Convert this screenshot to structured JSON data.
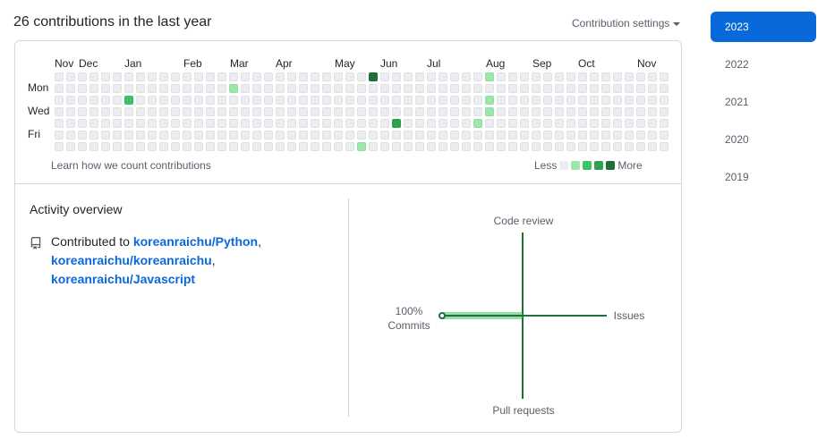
{
  "header": {
    "title": "26 contributions in the last year",
    "settings_label": "Contribution settings"
  },
  "graph": {
    "months": [
      "Nov",
      "Dec",
      "Jan",
      "Feb",
      "Mar",
      "Apr",
      "May",
      "Jun",
      "Jul",
      "Aug",
      "Sep",
      "Oct",
      "Nov"
    ],
    "days": [
      "Mon",
      "Wed",
      "Fri"
    ],
    "learn_link": "Learn how we count contributions",
    "legend_less": "Less",
    "legend_more": "More",
    "level_colors": [
      "#ebedf0",
      "#9be9a8",
      "#40c463",
      "#30a14e",
      "#216e39"
    ],
    "weeks": 53,
    "active_cells": [
      {
        "week": 6,
        "day": 2,
        "level": 2
      },
      {
        "week": 15,
        "day": 1,
        "level": 1
      },
      {
        "week": 26,
        "day": 6,
        "level": 1
      },
      {
        "week": 27,
        "day": 0,
        "level": 4
      },
      {
        "week": 29,
        "day": 4,
        "level": 3
      },
      {
        "week": 36,
        "day": 4,
        "level": 1
      },
      {
        "week": 37,
        "day": 0,
        "level": 1
      },
      {
        "week": 37,
        "day": 2,
        "level": 1
      },
      {
        "week": 37,
        "day": 3,
        "level": 1
      }
    ]
  },
  "overview": {
    "title": "Activity overview",
    "contributed_prefix": "Contributed to",
    "repos": [
      "koreanraichu/Python",
      "koreanraichu/koreanraichu",
      "koreanraichu/Javascript"
    ],
    "separator": ","
  },
  "radar": {
    "code_review": "Code review",
    "issues": "Issues",
    "pull_requests": "Pull requests",
    "commits_percent": "100%",
    "commits_label": "Commits",
    "color": "#216e39",
    "fill_color": "#40c463"
  },
  "years": [
    "2023",
    "2022",
    "2021",
    "2020",
    "2019"
  ],
  "selected_year": "2023"
}
